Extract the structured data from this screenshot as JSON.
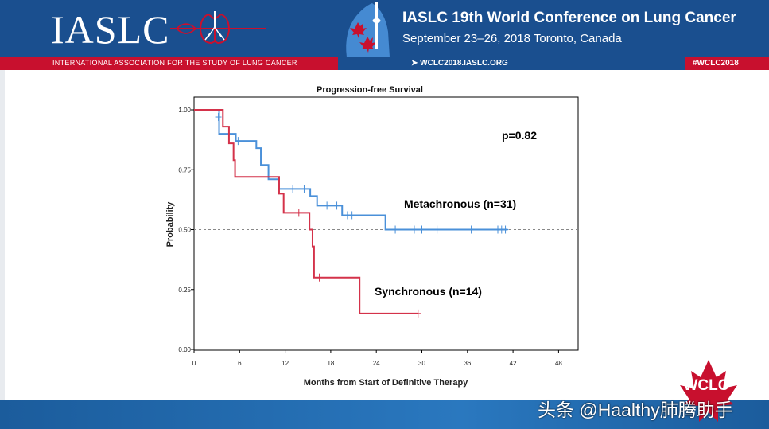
{
  "header": {
    "logo": "IASLC",
    "org_name": "INTERNATIONAL ASSOCIATION FOR THE STUDY OF LUNG CANCER",
    "conference_title": "IASLC  19th World Conference on Lung Cancer",
    "conference_dates": "September 23–26, 2018  Toronto, Canada",
    "website": "➤ WCLC2018.IASLC.ORG",
    "hashtag": "#WCLC2018"
  },
  "footer": {
    "badge": "WCLC",
    "watermark": "头条 @Haalthy肺腾助手"
  },
  "colors": {
    "brand_blue": "#1a4f8f",
    "brand_red": "#c8102e",
    "metachronous": "#4a90d9",
    "synchronous": "#d4324a"
  },
  "chart_data": {
    "type": "line",
    "subtype": "kaplan-meier",
    "title": "Progression-free Survival",
    "xlabel": "Months from Start of Definitive Therapy",
    "ylabel": "Probability",
    "xlim": [
      0,
      48
    ],
    "ylim": [
      0,
      1
    ],
    "xticks": [
      0,
      6,
      12,
      18,
      24,
      30,
      36,
      42,
      48
    ],
    "yticks": [
      0,
      0.25,
      0.5,
      0.75,
      1.0
    ],
    "ytick_labels": [
      "0.00",
      "0.25",
      "0.50",
      "0.75",
      "1.00"
    ],
    "reference_line": 0.5,
    "annotations": {
      "p_value": "p=0.82"
    },
    "series": [
      {
        "name": "Metachronous (n=31)",
        "steps": [
          [
            0,
            1.0
          ],
          [
            3.3,
            0.9
          ],
          [
            5.5,
            0.87
          ],
          [
            8.2,
            0.84
          ],
          [
            8.8,
            0.77
          ],
          [
            9.8,
            0.71
          ],
          [
            11.2,
            0.67
          ],
          [
            15.3,
            0.64
          ],
          [
            16.2,
            0.6
          ],
          [
            19.5,
            0.56
          ],
          [
            25.2,
            0.5
          ],
          [
            41.3,
            0.5
          ]
        ],
        "censored": [
          [
            3.2,
            0.97
          ],
          [
            5.8,
            0.87
          ],
          [
            13,
            0.67
          ],
          [
            14.5,
            0.67
          ],
          [
            17.5,
            0.6
          ],
          [
            18.8,
            0.6
          ],
          [
            20.2,
            0.56
          ],
          [
            20.8,
            0.56
          ],
          [
            26.5,
            0.5
          ],
          [
            29,
            0.5
          ],
          [
            30,
            0.5
          ],
          [
            32,
            0.5
          ],
          [
            36.5,
            0.5
          ],
          [
            40,
            0.5
          ],
          [
            40.5,
            0.5
          ],
          [
            41,
            0.5
          ]
        ]
      },
      {
        "name": "Synchronous (n=14)",
        "steps": [
          [
            0,
            1.0
          ],
          [
            3.8,
            0.93
          ],
          [
            4.6,
            0.86
          ],
          [
            5.2,
            0.79
          ],
          [
            5.4,
            0.72
          ],
          [
            11.2,
            0.65
          ],
          [
            11.8,
            0.57
          ],
          [
            15.2,
            0.5
          ],
          [
            15.6,
            0.43
          ],
          [
            15.8,
            0.3
          ],
          [
            21.8,
            0.15
          ],
          [
            29.5,
            0.15
          ]
        ],
        "censored": [
          [
            13.8,
            0.57
          ],
          [
            16.5,
            0.3
          ],
          [
            29.5,
            0.15
          ]
        ]
      }
    ]
  }
}
